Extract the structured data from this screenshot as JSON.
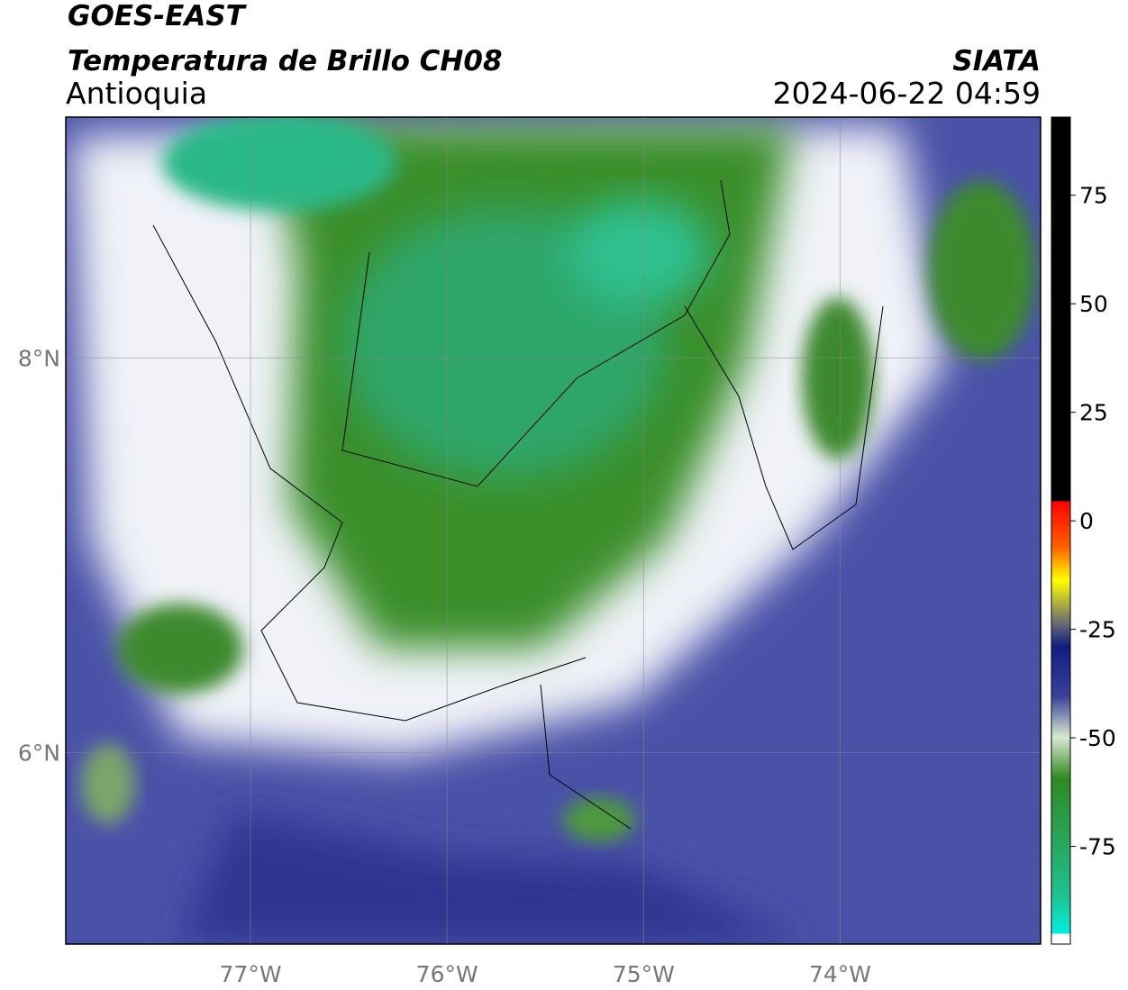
{
  "header": {
    "title": "GOES-EAST",
    "subtitle": "Temperatura de Brillo CH08",
    "region": "Antioquia",
    "source": "SIATA",
    "timestamp": "2024-06-22 04:59"
  },
  "map": {
    "xlim": [
      -77.94,
      -72.98
    ],
    "ylim": [
      5.03,
      9.22
    ],
    "xticks": [
      {
        "value": -77,
        "label": "77°W"
      },
      {
        "value": -76,
        "label": "76°W"
      },
      {
        "value": -75,
        "label": "75°W"
      },
      {
        "value": -74,
        "label": "74°W"
      }
    ],
    "yticks": [
      {
        "value": 6,
        "label": "6°N"
      },
      {
        "value": 8,
        "label": "8°N"
      }
    ],
    "grid": true
  },
  "colorbar": {
    "lim": [
      -97.5,
      93
    ],
    "ticks": [
      75,
      50,
      25,
      0,
      -25,
      -50,
      -75
    ]
  }
}
